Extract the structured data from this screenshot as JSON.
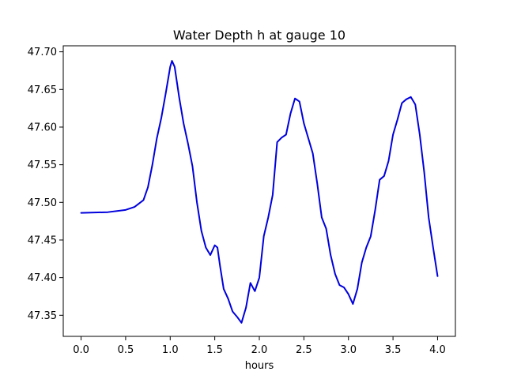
{
  "chart_data": {
    "type": "line",
    "title": "Water Depth h at gauge 10",
    "xlabel": "hours",
    "ylabel": "",
    "xlim": [
      -0.2,
      4.2
    ],
    "ylim": [
      47.322,
      47.708
    ],
    "x_ticks": [
      0.0,
      0.5,
      1.0,
      1.5,
      2.0,
      2.5,
      3.0,
      3.5,
      4.0
    ],
    "x_tick_labels": [
      "0.0",
      "0.5",
      "1.0",
      "1.5",
      "2.0",
      "2.5",
      "3.0",
      "3.5",
      "4.0"
    ],
    "y_ticks": [
      47.35,
      47.4,
      47.45,
      47.5,
      47.55,
      47.6,
      47.65,
      47.7
    ],
    "y_tick_labels": [
      "47.35",
      "47.40",
      "47.45",
      "47.50",
      "47.55",
      "47.60",
      "47.65",
      "47.70"
    ],
    "grid": false,
    "series": [
      {
        "name": "",
        "color": "#0000dd",
        "points": [
          [
            0.0,
            47.486
          ],
          [
            0.3,
            47.487
          ],
          [
            0.5,
            47.49
          ],
          [
            0.6,
            47.494
          ],
          [
            0.7,
            47.503
          ],
          [
            0.75,
            47.52
          ],
          [
            0.8,
            47.55
          ],
          [
            0.85,
            47.585
          ],
          [
            0.9,
            47.612
          ],
          [
            0.95,
            47.645
          ],
          [
            1.0,
            47.68
          ],
          [
            1.02,
            47.688
          ],
          [
            1.05,
            47.68
          ],
          [
            1.1,
            47.64
          ],
          [
            1.15,
            47.605
          ],
          [
            1.2,
            47.578
          ],
          [
            1.25,
            47.548
          ],
          [
            1.3,
            47.5
          ],
          [
            1.35,
            47.462
          ],
          [
            1.4,
            47.44
          ],
          [
            1.45,
            47.43
          ],
          [
            1.5,
            47.443
          ],
          [
            1.53,
            47.44
          ],
          [
            1.56,
            47.415
          ],
          [
            1.6,
            47.385
          ],
          [
            1.65,
            47.372
          ],
          [
            1.7,
            47.355
          ],
          [
            1.75,
            47.348
          ],
          [
            1.8,
            47.34
          ],
          [
            1.85,
            47.36
          ],
          [
            1.9,
            47.393
          ],
          [
            1.95,
            47.382
          ],
          [
            2.0,
            47.4
          ],
          [
            2.05,
            47.455
          ],
          [
            2.1,
            47.48
          ],
          [
            2.15,
            47.51
          ],
          [
            2.2,
            47.58
          ],
          [
            2.25,
            47.586
          ],
          [
            2.3,
            47.59
          ],
          [
            2.35,
            47.618
          ],
          [
            2.4,
            47.638
          ],
          [
            2.45,
            47.634
          ],
          [
            2.5,
            47.605
          ],
          [
            2.55,
            47.585
          ],
          [
            2.6,
            47.565
          ],
          [
            2.65,
            47.525
          ],
          [
            2.7,
            47.48
          ],
          [
            2.75,
            47.465
          ],
          [
            2.8,
            47.43
          ],
          [
            2.85,
            47.405
          ],
          [
            2.9,
            47.39
          ],
          [
            2.95,
            47.387
          ],
          [
            3.0,
            47.378
          ],
          [
            3.05,
            47.365
          ],
          [
            3.1,
            47.385
          ],
          [
            3.15,
            47.42
          ],
          [
            3.2,
            47.44
          ],
          [
            3.25,
            47.455
          ],
          [
            3.3,
            47.49
          ],
          [
            3.35,
            47.53
          ],
          [
            3.4,
            47.535
          ],
          [
            3.45,
            47.555
          ],
          [
            3.5,
            47.59
          ],
          [
            3.55,
            47.61
          ],
          [
            3.6,
            47.632
          ],
          [
            3.65,
            47.637
          ],
          [
            3.7,
            47.64
          ],
          [
            3.75,
            47.63
          ],
          [
            3.8,
            47.59
          ],
          [
            3.85,
            47.54
          ],
          [
            3.9,
            47.48
          ],
          [
            3.95,
            47.44
          ],
          [
            4.0,
            47.402
          ]
        ]
      }
    ]
  }
}
